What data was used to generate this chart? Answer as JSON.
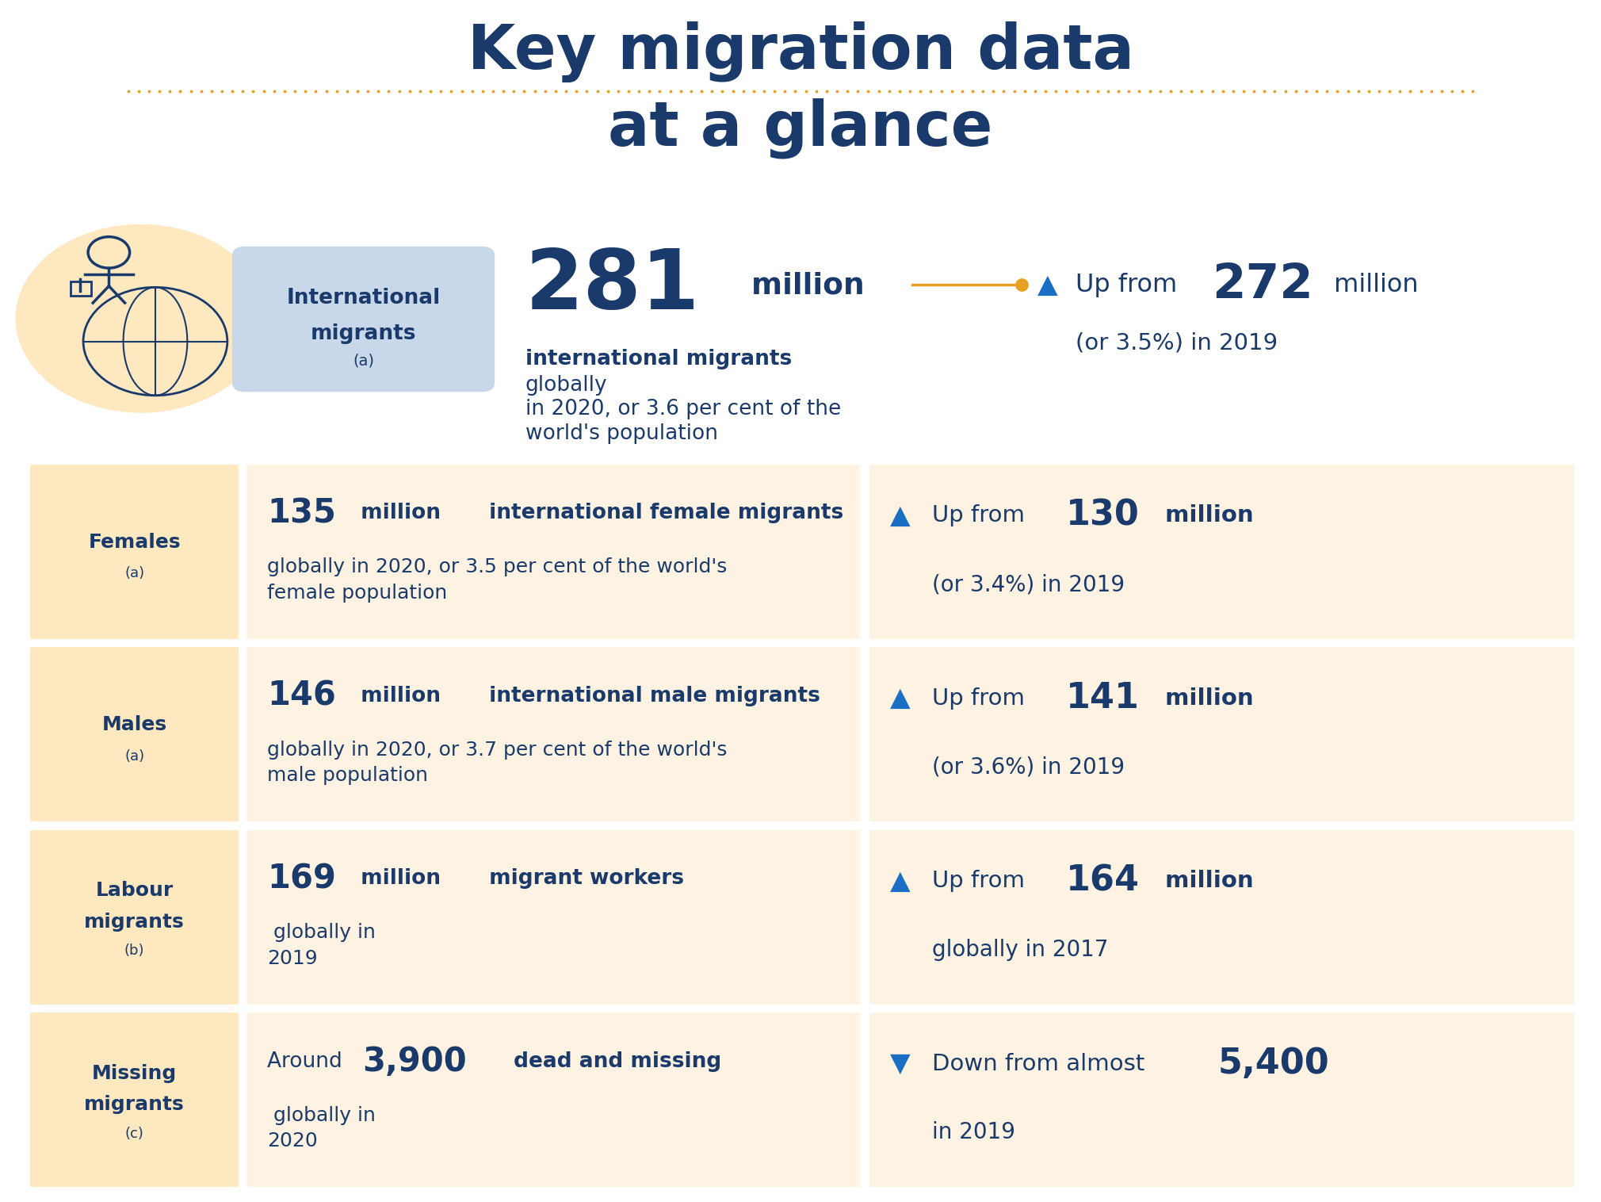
{
  "title_line1": "Key migration data",
  "title_line2": "at a glance",
  "title_color": "#1a3a6b",
  "dotted_line_color": "#e8a020",
  "bg_color": "#ffffff",
  "dark_blue": "#1a3a6b",
  "blue_arrow": "#1a6fc4",
  "gold_color": "#e8a020",
  "cell_col1": "#fde8c0",
  "cell_col2": "#fef3e2",
  "cell_col3": "#fef3e2",
  "label_box_color": "#c8d8ea",
  "icon_bg": "#fde8c0",
  "rows": [
    {
      "label_text": "Females",
      "label_sup": "(a)",
      "num_prefix": "",
      "num_big": "135",
      "num_rest": " million",
      "desc_bold": "international female migrants",
      "desc_normal": "\nglobally in 2020, or 3.5 per cent of the world's\nfemale population",
      "trend": "up",
      "trend_prefix": "Up from ",
      "trend_num": "130",
      "trend_num_rest": " million",
      "trend_desc": "(or 3.4%) in 2019"
    },
    {
      "label_text": "Males",
      "label_sup": "(a)",
      "num_prefix": "",
      "num_big": "146",
      "num_rest": " million",
      "desc_bold": "international male migrants",
      "desc_normal": "\nglobally in 2020, or 3.7 per cent of the world's\nmale population",
      "trend": "up",
      "trend_prefix": "Up from ",
      "trend_num": "141",
      "trend_num_rest": " million",
      "trend_desc": "(or 3.6%) in 2019"
    },
    {
      "label_text": "Labour\nmigrants",
      "label_sup": "(b)",
      "num_prefix": "",
      "num_big": "169",
      "num_rest": " million",
      "desc_bold": "migrant workers",
      "desc_normal": " globally in\n2019",
      "trend": "up",
      "trend_prefix": "Up from ",
      "trend_num": "164",
      "trend_num_rest": " million",
      "trend_desc": "globally in 2017"
    },
    {
      "label_text": "Missing\nmigrants",
      "label_sup": "(c)",
      "num_prefix": "Around ",
      "num_big": "3,900",
      "num_rest": "",
      "desc_bold": "dead and missing",
      "desc_normal": " globally in\n2020",
      "trend": "down",
      "trend_prefix": "Down from almost ",
      "trend_num": "5,400",
      "trend_num_rest": "",
      "trend_desc": "in 2019"
    }
  ]
}
